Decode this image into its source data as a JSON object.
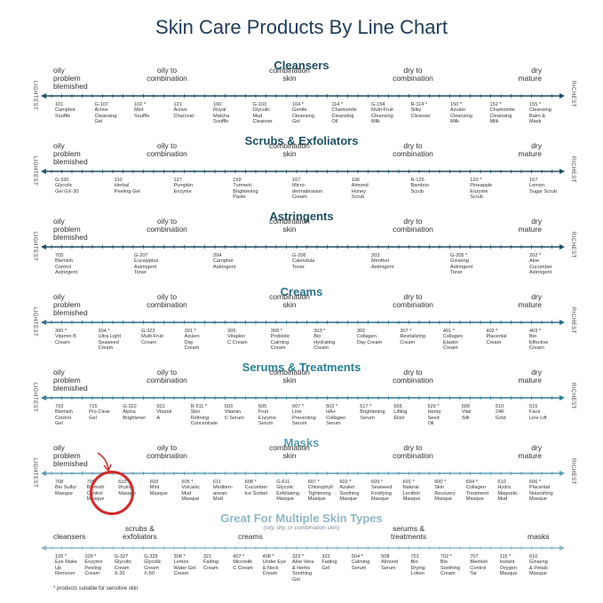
{
  "title": "Skin Care Products By Line Chart",
  "axis_left": "LIGHTEST",
  "axis_right": "RICHEST",
  "colors": {
    "dark": "#1d4f63",
    "mid": "#2a7f96",
    "light": "#8fb7c8",
    "highlight": "#d42a2a"
  },
  "sections": [
    {
      "title": "Cleansers",
      "labels": [
        "oily\nproblem\nblemished",
        "oily to\ncombination",
        "combination\nskin",
        "dry to\ncombination",
        "dry\nmature"
      ],
      "products": [
        "101\nCamphor\nSouffle",
        "G-107\nActive\nCleansing\nGel",
        "102 *\nMint\nSouffle",
        "121\nActive\nCharcoal",
        "100\nRoyal\nMatcha\nSouffle",
        "G-103\nGlycolic\nMud\nCleanser",
        "104 *\nGentle\nCleansing\nGel",
        "114 *\nChamomile\nCleansing\nOil",
        "G-154\nMulti-Fruit\nCleansing\nMilk",
        "R-114 *\nSilky\nCleanser",
        "150 *\nAzulen\nCleansing\nMilk",
        "152 *\nChamomile\nCleansing\nMilk",
        "155 *\nCleansing\nBalm &\nMask"
      ]
    },
    {
      "title": "Scrubs & Exfoliators",
      "labels": [
        "oily\nproblem\nblemished",
        "oily to\ncombination",
        "combination\nskin",
        "dry to\ncombination",
        "dry\nmature"
      ],
      "products": [
        "G-330\nGlycolic\nGel GX-30",
        "110\nHerbal\nPeeling Gel",
        "127\nPumpkin\nEnzyme",
        "159\nTurmeric\nBrightening\nPaste",
        "107\nMicro-\ndermabrasion\nCream",
        "106\nAlmond\nHoney\nScrub",
        "R-125\nBamboo\nScrub",
        "120 *\nPineapple\nEnzyme\nScrub",
        "157\nLemon\nSugar Scrub"
      ]
    },
    {
      "title": "Astringents",
      "labels": [
        "oily\nproblem\nblemished",
        "oily to\ncombination",
        "combination\nskin",
        "dry to\ncombination",
        "dry\nmature"
      ],
      "products": [
        "705\nBlemish\nControl\nAstringent",
        "G-207\nEucalyptus\nAstringent\nToner",
        "204\nCamphor\nAstringent",
        "G-206\nCalendula\nToner",
        "203\nMenthol\nAstringent",
        "G-205 *\nGinseng\nAstringent\nToner",
        "202 *\nAloe\nCucumber\nAstringent"
      ]
    },
    {
      "title": "Creams",
      "labels": [
        "oily\nproblem\nblemished",
        "oily to\ncombination",
        "combination\nskin",
        "dry to\ncombination",
        "dry\nmature"
      ],
      "products": [
        "300 *\nVitamin B\nCream",
        "304 *\nUltra Light\nSeaweed\nCream",
        "G-323\nMulti-Fruit\nCream",
        "301 *\nAzulen\nDay\nCream",
        "305\nVitaplex\nC Cream",
        "309 *\nProbiotic\nCalming\nCream",
        "303 *\nBio\nHydrating\nCream",
        "302\nCollagen\nDay Cream",
        "307 *\nRevitalizing\nCream",
        "401 *\nCollagen\nElastin\nCream",
        "402 *\nPlacental\nCream",
        "403 *\nBio\nEffective\nCream"
      ]
    },
    {
      "title": "Serums & Treatments",
      "labels": [
        "oily\nproblem\nblemished",
        "oily to\ncombination",
        "combination\nskin",
        "dry to\ncombination",
        "dry\nmature"
      ],
      "products": [
        "703\nBlemish\nControl\nGel",
        "715\nPro Clear\nGel",
        "G-322\nAlpha\nBrightener",
        "501\nVitanol\nA",
        "R-511 *\nSkin\nRefining\nConcentrate",
        "503\nVitamin\nC Serum",
        "505\nFruit\nEnzyme\nSerum",
        "507 *\nLine\nPreventing\nSerum",
        "502 *\nHA+\nCollagen\nSerum",
        "517 *\nBrightening\nSerum",
        "555\nLifting\nElixir",
        "529 *\nHemp\nSeed\nOil",
        "509\nVital\nSilk",
        "510\n24K\nGold",
        "515\nFace\nLine Lift"
      ]
    },
    {
      "title": "Masks",
      "labels": [
        "oily\nproblem\nblemished",
        "oily to\ncombination",
        "combination\nskin",
        "dry to\ncombination",
        "dry\nmature"
      ],
      "products": [
        "708\nBio Sulfur\nMasque",
        "709\nBlemish\nControl\nMasque",
        "610\nDrying\nMasque",
        "603\nMint\nMasque",
        "605 *\nVolcanic\nMud\nMasque",
        "611\nMediterr-\nanean\nMud",
        "608 *\nCucumber\nIce Sorbet",
        "G-611\nGlycolic\nExfoliating\nMasque",
        "607 *\nChlorophyll\nTightening\nMasque",
        "602 *\nAzulen\nSoothing\nMasque",
        "609 *\nSeaweed\nFortifying\nMasque",
        "601 *\nNatural\nLecithin\nMasque",
        "600 *\nSkin\nRecovery\nMasque",
        "604 *\nCollagen\nTreatment\nMasque",
        "610\nHydro\nMagnetic\nMud",
        "606 *\nPlacental\nNourishing\nMasque"
      ]
    }
  ],
  "multi": {
    "title": "Great For Multiple Skin Types",
    "subtitle": "(oily, dry, or combination skin)",
    "labels": [
      "cleansers",
      "scrubs &\nexfoliators",
      "creams",
      "serums &\ntreatments",
      "masks"
    ],
    "products": [
      "105 *\nEye Make\nUp\nRemover",
      "109 *\nEnzyme\nPeeling\nCream",
      "G-327\nGlycolic\nCream\nX-30",
      "G-329\nGlycolic\nCream\nX-50",
      "308 *\nLemon\nWater Gel\nCream",
      "321\nFading\nCream",
      "407 *\nMicrosilk\nC Cream",
      "408 *\nUnder Eye\n& Neck\nCream",
      "323 *\nAloe Vera\n& Herbs\nSoothing\nGel",
      "322\nFading\nGel",
      "504 *\nCalming\nSerum",
      "508\nAlmond\nSerum",
      "701\nBio\nDrying\nLotion",
      "702 *\nBio\nSoothing\nCream",
      "707\nBlemish\nControl\nTar",
      "115 *\nInstant\nOxygen\nMasque",
      "610\nGinseng\n& Petals\nMasque"
    ]
  },
  "footnote": "* products suitable for sensitive skin"
}
